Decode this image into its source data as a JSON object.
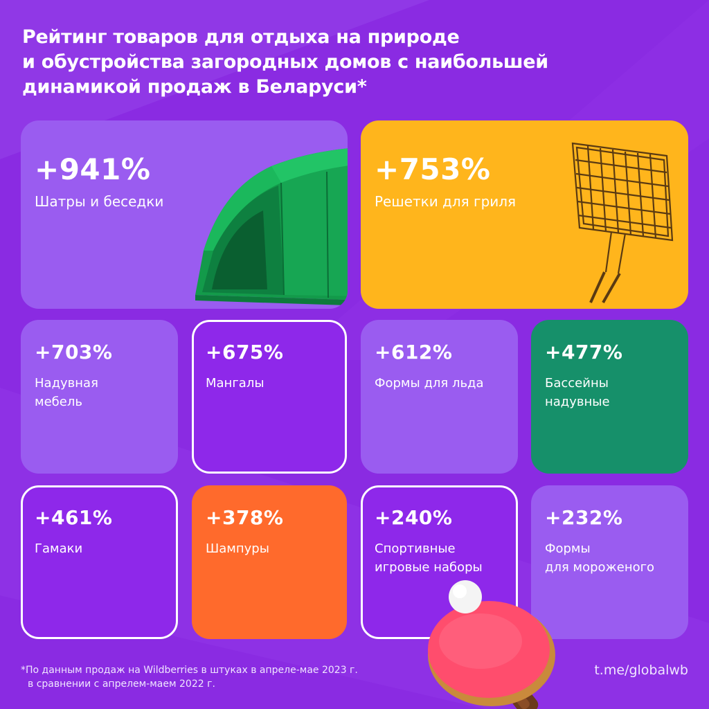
{
  "title": {
    "lines": [
      "Рейтинг товаров для отдыха на природе",
      "и обустройства загородных домов с наибольшей",
      "динамикой продаж в Беларуси*"
    ]
  },
  "colors": {
    "background": "#8a2be2",
    "card_light_purple": "#9a5cf0",
    "card_dark_purple": "#8e28ea",
    "card_yellow": "#ffb51c",
    "card_green": "#16906a",
    "card_orange": "#ff6a2c",
    "text": "#ffffff"
  },
  "cards": [
    {
      "value": "+941%",
      "label": [
        "Шатры и беседки"
      ],
      "icon": "tent-icon"
    },
    {
      "value": "+753%",
      "label": [
        "Решетки для гриля"
      ],
      "icon": "grill-grate-icon"
    },
    {
      "value": "+703%",
      "label": [
        "Надувная",
        "мебель"
      ]
    },
    {
      "value": "+675%",
      "label": [
        "Мангалы"
      ]
    },
    {
      "value": "+612%",
      "label": [
        "Формы для льда"
      ]
    },
    {
      "value": "+477%",
      "label": [
        "Бассейны",
        "надувные"
      ]
    },
    {
      "value": "+461%",
      "label": [
        "Гамаки"
      ]
    },
    {
      "value": "+378%",
      "label": [
        "Шампуры"
      ]
    },
    {
      "value": "+240%",
      "label": [
        "Спортивные",
        "игровые наборы"
      ],
      "icon": "ping-pong-paddle-icon"
    },
    {
      "value": "+232%",
      "label": [
        "Формы",
        "для мороженого"
      ]
    }
  ],
  "footnote": {
    "lines": [
      "*По данным продаж на Wildberries в штуках в апреле-мае 2023 г.",
      "в сравнении с апрелем-маем 2022 г."
    ]
  },
  "link": {
    "text": "t.me/globalwb"
  }
}
